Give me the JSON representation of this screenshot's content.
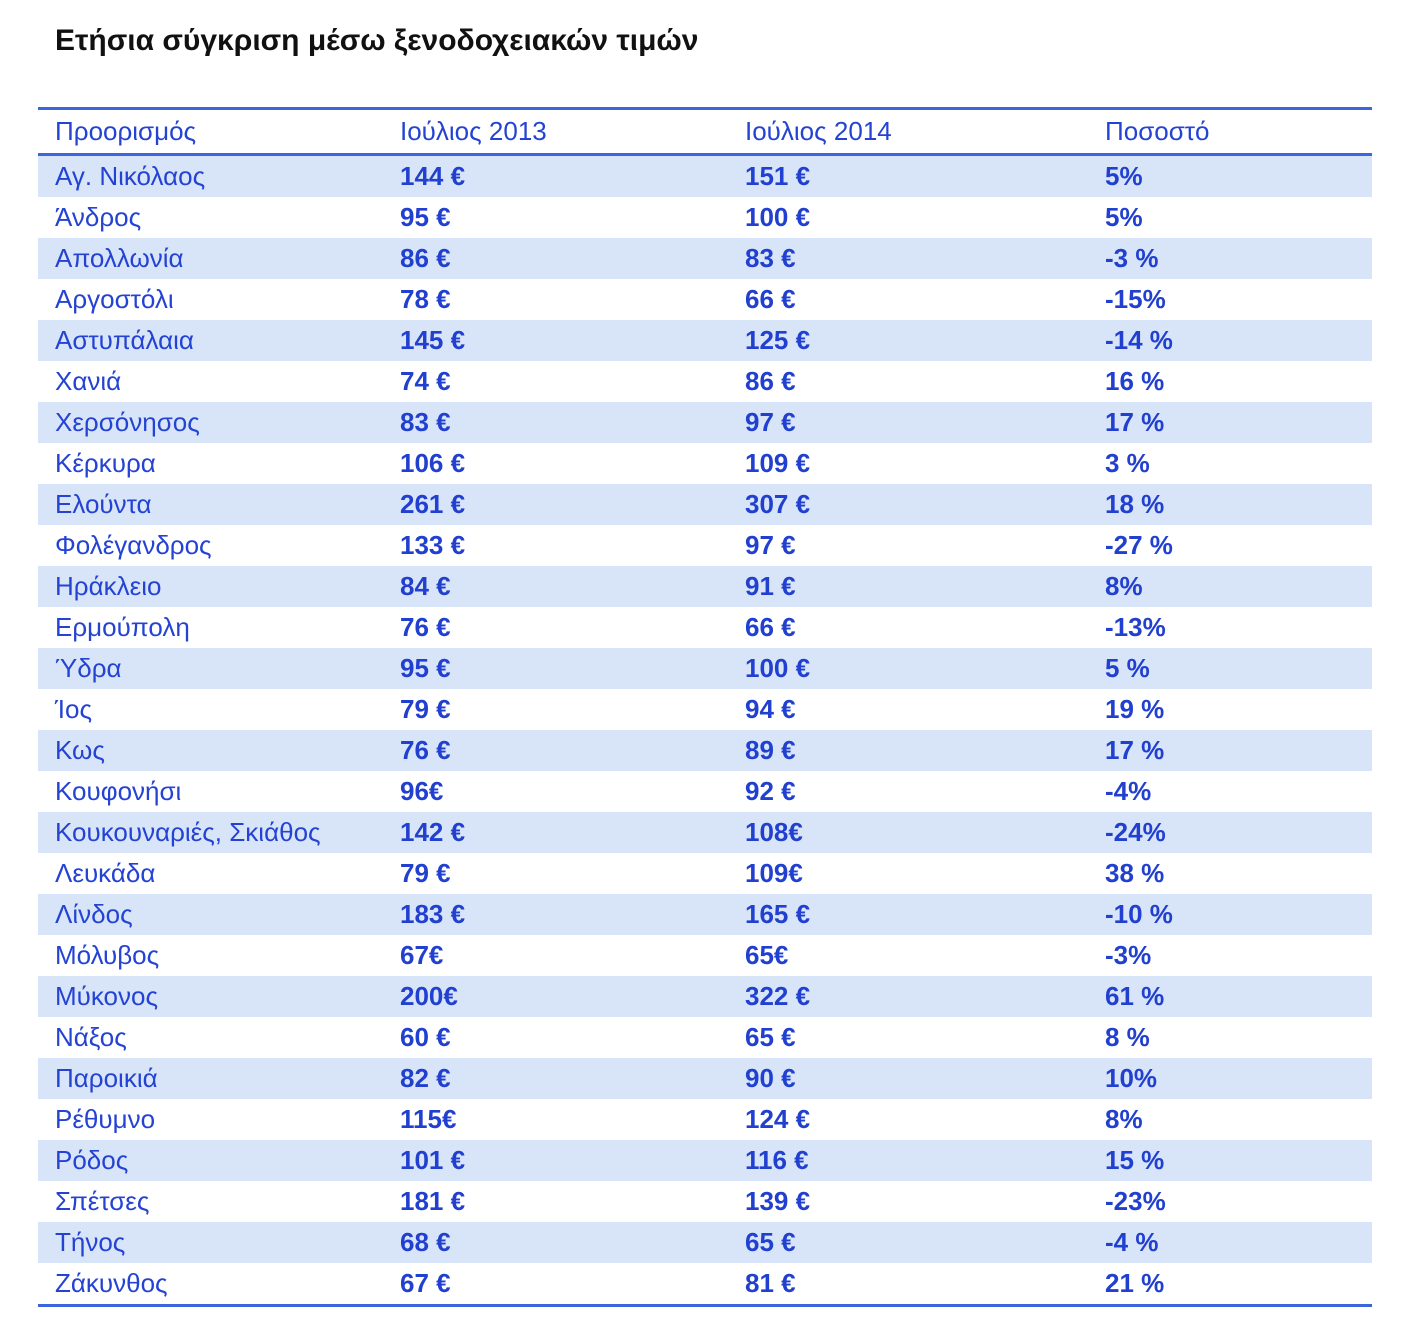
{
  "colors": {
    "text_blue": "#2443d3",
    "value_blue": "#2140cf",
    "stripe_background": "#d8e5f9",
    "border_blue": "#3d65de",
    "title_color": "#111111",
    "page_background": "#ffffff"
  },
  "chart_data": {
    "type": "table",
    "title": "Ετήσια σύγκριση μέσω ξενοδοχειακών τιμών",
    "columns": [
      "Προορισμός",
      "Ιούλιος 2013",
      "Ιούλιος 2014",
      "Ποσοστό"
    ],
    "rows": [
      [
        "Αγ. Νικόλαος",
        "144 €",
        "151 €",
        "5%"
      ],
      [
        "Άνδρος",
        "95 €",
        "100 €",
        "5%"
      ],
      [
        "Απολλωνία",
        "86 €",
        "83 €",
        "-3 %"
      ],
      [
        "Αργοστόλι",
        "78 €",
        "66 €",
        "-15%"
      ],
      [
        "Αστυπάλαια",
        "145 €",
        "125 €",
        "-14 %"
      ],
      [
        "Χανιά",
        "74 €",
        "86 €",
        "16 %"
      ],
      [
        "Χερσόνησος",
        "83 €",
        "97 €",
        "17 %"
      ],
      [
        "Κέρκυρα",
        "106 €",
        "109 €",
        "3 %"
      ],
      [
        "Ελούντα",
        "261 €",
        "307 €",
        "18 %"
      ],
      [
        "Φολέγανδρος",
        "133 €",
        "97 €",
        "-27 %"
      ],
      [
        "Ηράκλειο",
        "84 €",
        "91 €",
        "8%"
      ],
      [
        "Ερμούπολη",
        "76 €",
        "66 €",
        "-13%"
      ],
      [
        "Ύδρα",
        "95 €",
        "100 €",
        "5 %"
      ],
      [
        "Ίος",
        "79 €",
        "94 €",
        "19 %"
      ],
      [
        "Κως",
        "76 €",
        "89 €",
        "17 %"
      ],
      [
        "Κουφονήσι",
        "96€",
        "92 €",
        "-4%"
      ],
      [
        "Κουκουναριές, Σκιάθος",
        "142 €",
        "108€",
        "-24%"
      ],
      [
        "Λευκάδα",
        "79 €",
        "109€",
        "38 %"
      ],
      [
        "Λίνδος",
        "183 €",
        "165 €",
        "-10 %"
      ],
      [
        "Μόλυβος",
        "67€",
        "65€",
        "-3%"
      ],
      [
        "Μύκονος",
        "200€",
        "322 €",
        "61 %"
      ],
      [
        "Νάξος",
        "60 €",
        "65 €",
        "8 %"
      ],
      [
        "Παροικιά",
        "82 €",
        "90 €",
        "10%"
      ],
      [
        "Ρέθυμνο",
        "115€",
        "124 €",
        "8%"
      ],
      [
        "Ρόδος",
        "101 €",
        "116 €",
        "15 %"
      ],
      [
        "Σπέτσες",
        "181 €",
        "139 €",
        "-23%"
      ],
      [
        "Τήνος",
        "68 €",
        "65 €",
        "-4 %"
      ],
      [
        "Ζάκυνθος",
        "67 €",
        "81 €",
        "21 %"
      ]
    ],
    "categories": [
      "Αγ. Νικόλαος",
      "Άνδρος",
      "Απολλωνία",
      "Αργοστόλι",
      "Αστυπάλαια",
      "Χανιά",
      "Χερσόνησος",
      "Κέρκυρα",
      "Ελούντα",
      "Φολέγανδρος",
      "Ηράκλειο",
      "Ερμούπολη",
      "Ύδρα",
      "Ίος",
      "Κως",
      "Κουφονήσι",
      "Κουκουναριές, Σκιάθος",
      "Λευκάδα",
      "Λίνδος",
      "Μόλυβος",
      "Μύκονος",
      "Νάξος",
      "Παροικιά",
      "Ρέθυμνο",
      "Ρόδος",
      "Σπέτσες",
      "Τήνος",
      "Ζάκυνθος"
    ],
    "series": [
      {
        "name": "Ιούλιος 2013 (€)",
        "values": [
          144,
          95,
          86,
          78,
          145,
          74,
          83,
          106,
          261,
          133,
          84,
          76,
          95,
          79,
          76,
          96,
          142,
          79,
          183,
          67,
          200,
          60,
          82,
          115,
          101,
          181,
          68,
          67
        ]
      },
      {
        "name": "Ιούλιος 2014 (€)",
        "values": [
          151,
          100,
          83,
          66,
          125,
          86,
          97,
          109,
          307,
          97,
          91,
          66,
          100,
          94,
          89,
          92,
          108,
          109,
          165,
          65,
          322,
          65,
          90,
          124,
          116,
          139,
          65,
          81
        ]
      },
      {
        "name": "Ποσοστό (%)",
        "values": [
          5,
          5,
          -3,
          -15,
          -14,
          16,
          17,
          3,
          18,
          -27,
          8,
          -13,
          5,
          19,
          17,
          -4,
          -24,
          38,
          -10,
          -3,
          61,
          8,
          10,
          8,
          15,
          -23,
          -4,
          21
        ]
      }
    ],
    "layout": {
      "striping": "odd-rows-light-blue",
      "first_row_striped": true
    }
  }
}
